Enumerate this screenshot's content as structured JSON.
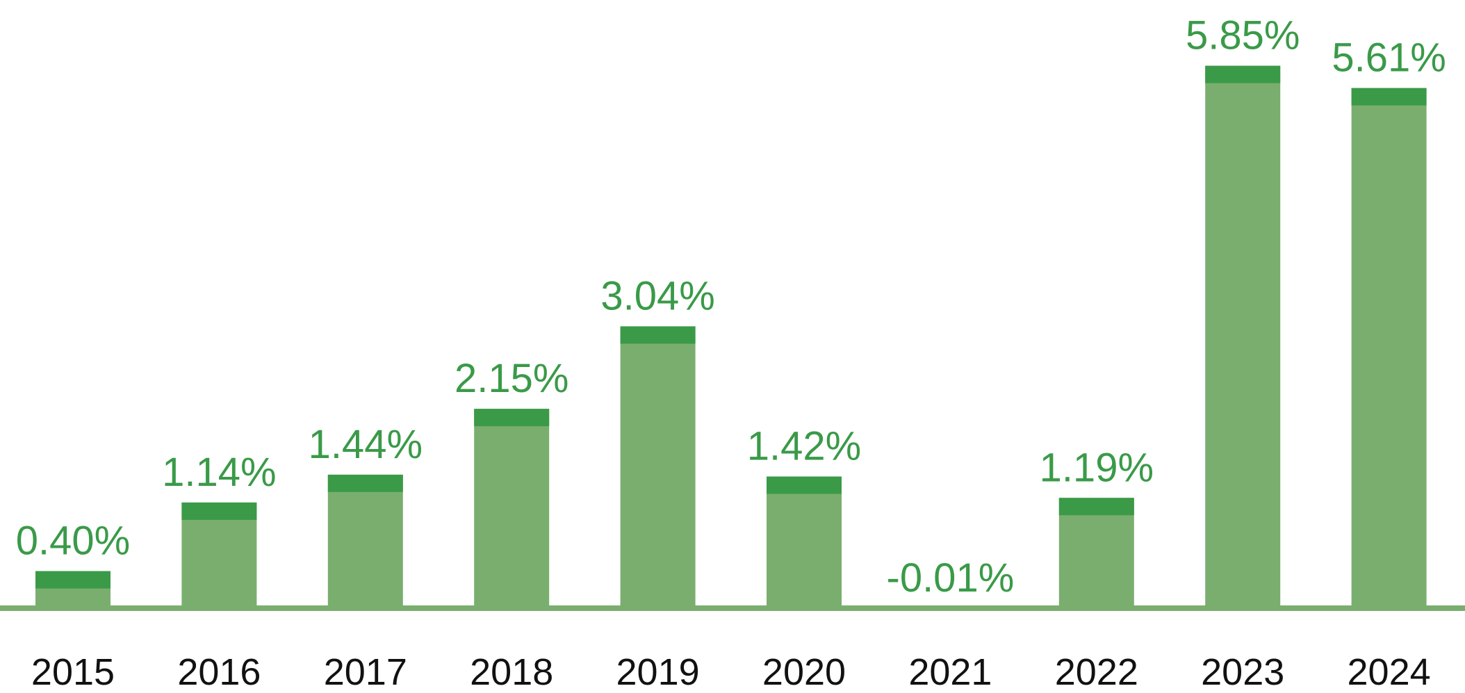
{
  "chart_data": {
    "type": "bar",
    "categories": [
      "2015",
      "2016",
      "2017",
      "2018",
      "2019",
      "2020",
      "2021",
      "2022",
      "2023",
      "2024"
    ],
    "values": [
      0.4,
      1.14,
      1.44,
      2.15,
      3.04,
      1.42,
      -0.01,
      1.19,
      5.85,
      5.61
    ],
    "value_labels": [
      "0.40%",
      "1.14%",
      "1.44%",
      "2.15%",
      "3.04%",
      "1.42%",
      "-0.01%",
      "1.19%",
      "5.85%",
      "5.61%"
    ],
    "title": "",
    "xlabel": "",
    "ylabel": "",
    "ylim": [
      0,
      6
    ],
    "grid": false,
    "legend": "none",
    "colors": {
      "bar_fill": "#7aae6f",
      "bar_cap": "#3a9a48",
      "baseline": "#7aae6f",
      "value_label": "#3a9a48",
      "year_label": "#111111"
    }
  }
}
